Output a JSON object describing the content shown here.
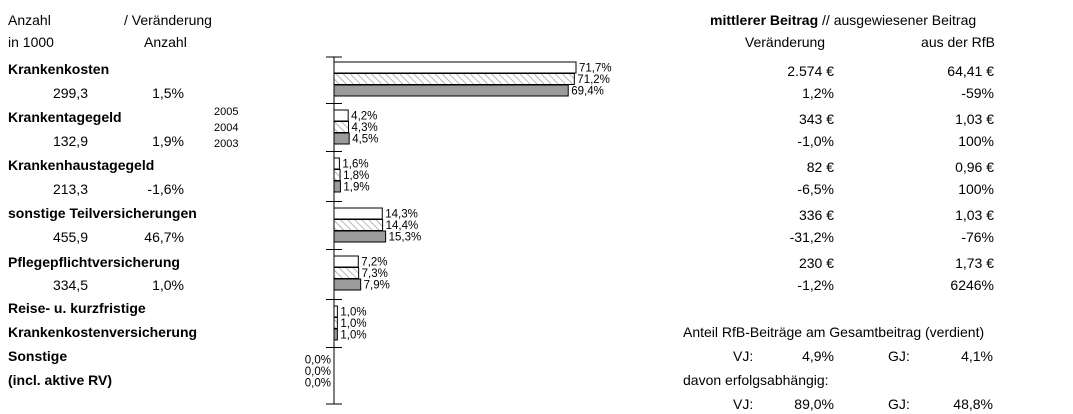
{
  "left_header": {
    "col1_line1": "Anzahl",
    "col1_line2": "in 1000",
    "col2_line1": "/ Veränderung",
    "col2_line2": "Anzahl"
  },
  "right_header": {
    "title_bold": "mittlerer Beitrag",
    "title_rest": "// ausgewiesener Beitrag",
    "col1": "Veränderung",
    "col2": "aus der RfB"
  },
  "year_legend": [
    "2005",
    "2004",
    "2003"
  ],
  "categories": [
    {
      "name": "Krankenkosten",
      "anzahl": "299,3",
      "veraenderung": "1,5%",
      "mittlerer_beitrag": "2.574 €",
      "veraenderung_beitrag": "1,2%",
      "rfb_beitrag": "64,41 €",
      "rfb_veraenderung": "-59%"
    },
    {
      "name": "Krankentagegeld",
      "anzahl": "132,9",
      "veraenderung": "1,9%",
      "mittlerer_beitrag": "343 €",
      "veraenderung_beitrag": "-1,0%",
      "rfb_beitrag": "1,03 €",
      "rfb_veraenderung": "100%"
    },
    {
      "name": "Krankenhaustagegeld",
      "anzahl": "213,3",
      "veraenderung": "-1,6%",
      "mittlerer_beitrag": "82 €",
      "veraenderung_beitrag": "-6,5%",
      "rfb_beitrag": "0,96 €",
      "rfb_veraenderung": "100%"
    },
    {
      "name": "sonstige Teilversicherungen",
      "anzahl": "455,9",
      "veraenderung": "46,7%",
      "mittlerer_beitrag": "336 €",
      "veraenderung_beitrag": "-31,2%",
      "rfb_beitrag": "1,03 €",
      "rfb_veraenderung": "-76%"
    },
    {
      "name": "Pflegepflichtversicherung",
      "anzahl": "334,5",
      "veraenderung": "1,0%",
      "mittlerer_beitrag": "230 €",
      "veraenderung_beitrag": "-1,2%",
      "rfb_beitrag": "1,73 €",
      "rfb_veraenderung": "6246%"
    },
    {
      "name_line1": "Reise- u. kurzfristige",
      "name_line2": "Krankenkostenversicherung"
    },
    {
      "name_line1": "Sonstige",
      "name_line2": "(incl. aktive RV)"
    }
  ],
  "anteil": {
    "title": "Anteil RfB-Beiträge am Gesamtbeitrag (verdient)",
    "vj_label": "VJ:",
    "vj_value": "4,9%",
    "gj_label": "GJ:",
    "gj_value": "4,1%",
    "davon": "davon erfolgsabhängig:",
    "vj2_label": "VJ:",
    "vj2_value": "89,0%",
    "gj2_label": "GJ:",
    "gj2_value": "48,8%"
  },
  "chart_data": {
    "type": "bar",
    "orientation": "horizontal",
    "categories": [
      "Krankenkosten",
      "Krankentagegeld",
      "Krankenhaustagegeld",
      "sonstige Teilversicherungen",
      "Pflegepflichtversicherung",
      "Reise- u. kurzfristige Krankenkostenversicherung",
      "Sonstige (incl. aktive RV)"
    ],
    "series": [
      {
        "name": "2005",
        "values": [
          71.7,
          4.2,
          1.6,
          14.3,
          7.2,
          1.0,
          0.0
        ],
        "labels": [
          "71,7%",
          "4,2%",
          "1,6%",
          "14,3%",
          "7,2%",
          "1,0%",
          "0,0%"
        ],
        "fill": "white"
      },
      {
        "name": "2004",
        "values": [
          71.2,
          4.3,
          1.8,
          14.4,
          7.3,
          1.0,
          0.0
        ],
        "labels": [
          "71,2%",
          "4,3%",
          "1,8%",
          "14,4%",
          "7,3%",
          "1,0%",
          "0,0%"
        ],
        "fill": "hatched"
      },
      {
        "name": "2003",
        "values": [
          69.4,
          4.5,
          1.9,
          15.3,
          7.9,
          1.0,
          0.0
        ],
        "labels": [
          "69,4%",
          "4,5%",
          "1,9%",
          "15,3%",
          "7,9%",
          "1,0%",
          "0,0%"
        ],
        "fill": "gray"
      }
    ],
    "xlim": [
      0,
      72
    ]
  }
}
